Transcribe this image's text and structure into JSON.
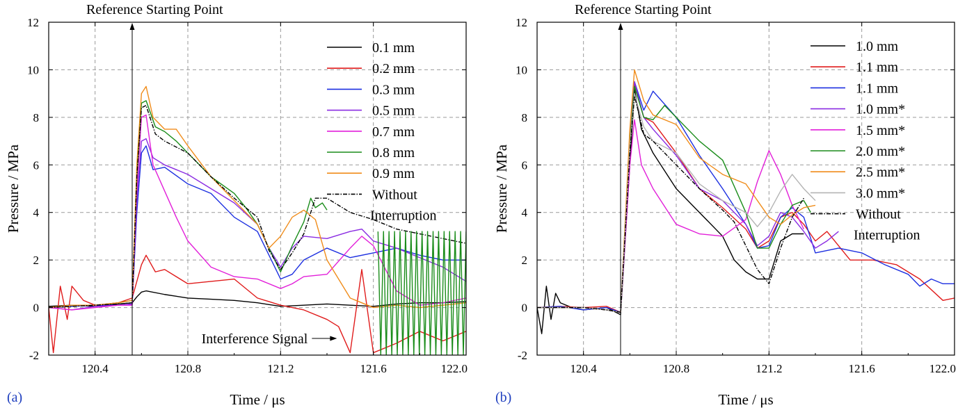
{
  "chart_data": [
    {
      "type": "line",
      "panel_label": "(a)",
      "xlabel": "Time  / μs",
      "ylabel": "Pressure / MPa",
      "xlim": [
        120.2,
        122.0
      ],
      "ylim": [
        -2,
        12
      ],
      "xticks": [
        "120.4",
        "120.8",
        "121.2",
        "121.6",
        "122.0"
      ],
      "xtick_values": [
        120.4,
        120.8,
        121.2,
        121.6,
        122.0
      ],
      "yticks": [
        "-2",
        "0",
        "2",
        "4",
        "6",
        "8",
        "10",
        "12"
      ],
      "ytick_values": [
        -2,
        0,
        2,
        4,
        6,
        8,
        10,
        12
      ],
      "grid": true,
      "legend_position": "top-right",
      "annotations": [
        {
          "text": "Reference Starting Point",
          "x": 120.56,
          "kind": "vertical-arrow"
        },
        {
          "text": "Interference Signal",
          "x": 121.44,
          "y": -1.3,
          "kind": "pointer-arrow"
        }
      ],
      "series": [
        {
          "name": "0.1 mm",
          "color": "#000000",
          "dash": "solid",
          "x": [
            120.2,
            120.3,
            120.4,
            120.5,
            120.56,
            120.58,
            120.6,
            120.62,
            120.7,
            120.8,
            120.9,
            121.0,
            121.1,
            121.2,
            121.3,
            121.4,
            121.5,
            121.6,
            121.7,
            121.8,
            121.9,
            122.0
          ],
          "y": [
            0.05,
            0.1,
            0.05,
            0.15,
            0.2,
            0.45,
            0.65,
            0.7,
            0.55,
            0.4,
            0.35,
            0.3,
            0.2,
            0.05,
            0.1,
            0.15,
            0.1,
            0.05,
            0.15,
            0.2,
            0.2,
            0.25
          ]
        },
        {
          "name": "0.2 mm",
          "color": "#e01b1b",
          "dash": "solid",
          "x": [
            120.2,
            120.22,
            120.25,
            120.28,
            120.3,
            120.35,
            120.4,
            120.5,
            120.56,
            120.6,
            120.62,
            120.66,
            120.7,
            120.8,
            120.9,
            121.0,
            121.1,
            121.2,
            121.3,
            121.4,
            121.45,
            121.5,
            121.55,
            121.6,
            121.7,
            121.8,
            121.9,
            122.0
          ],
          "y": [
            0.0,
            -1.9,
            0.9,
            -0.5,
            0.9,
            0.3,
            0.1,
            0.2,
            0.4,
            1.8,
            2.2,
            1.5,
            1.6,
            1.0,
            1.1,
            1.2,
            0.4,
            0.1,
            -0.1,
            -0.5,
            -0.8,
            -1.9,
            1.6,
            -1.9,
            -1.5,
            -1.0,
            -1.4,
            -1.0
          ]
        },
        {
          "name": "0.3 mm",
          "color": "#1c2fe0",
          "dash": "solid",
          "x": [
            120.2,
            120.3,
            120.4,
            120.5,
            120.56,
            120.58,
            120.6,
            120.62,
            120.65,
            120.7,
            120.8,
            120.9,
            121.0,
            121.1,
            121.15,
            121.2,
            121.25,
            121.3,
            121.4,
            121.5,
            121.6,
            121.7,
            121.8,
            121.9,
            122.0
          ],
          "y": [
            0.0,
            0.05,
            0.1,
            0.1,
            0.15,
            4.0,
            6.5,
            6.8,
            5.8,
            5.9,
            5.2,
            4.8,
            3.8,
            3.2,
            2.2,
            1.2,
            1.4,
            2.0,
            2.5,
            2.1,
            2.3,
            2.5,
            2.2,
            2.0,
            2.0
          ]
        },
        {
          "name": "0.5 mm",
          "color": "#8a2be2",
          "dash": "solid",
          "x": [
            120.2,
            120.3,
            120.4,
            120.5,
            120.56,
            120.58,
            120.6,
            120.62,
            120.65,
            120.7,
            120.8,
            120.9,
            121.0,
            121.1,
            121.15,
            121.2,
            121.25,
            121.3,
            121.4,
            121.5,
            121.55,
            121.6,
            121.7,
            121.8,
            121.9,
            122.0
          ],
          "y": [
            0.0,
            -0.1,
            0.05,
            0.1,
            0.15,
            4.5,
            7.0,
            7.1,
            6.3,
            6.0,
            5.6,
            5.0,
            4.4,
            3.5,
            2.5,
            1.7,
            2.5,
            3.0,
            2.9,
            3.2,
            3.3,
            2.8,
            2.5,
            2.1,
            1.7,
            1.1
          ]
        },
        {
          "name": "0.7 mm",
          "color": "#e21fd9",
          "dash": "solid",
          "x": [
            120.2,
            120.3,
            120.4,
            120.5,
            120.56,
            120.58,
            120.6,
            120.62,
            120.65,
            120.7,
            120.75,
            120.8,
            120.9,
            121.0,
            121.1,
            121.2,
            121.25,
            121.3,
            121.4,
            121.5,
            121.55,
            121.6,
            121.7,
            121.8,
            121.9,
            122.0
          ],
          "y": [
            0.0,
            -0.1,
            0.0,
            0.1,
            0.1,
            5.0,
            8.0,
            8.1,
            6.0,
            4.9,
            3.8,
            2.8,
            1.7,
            1.3,
            1.2,
            0.8,
            1.0,
            1.3,
            1.4,
            2.5,
            3.0,
            2.6,
            0.7,
            0.1,
            0.2,
            0.4
          ]
        },
        {
          "name": "0.8 mm",
          "color": "#1a8c1a",
          "dash": "solid",
          "x": [
            120.2,
            120.3,
            120.4,
            120.5,
            120.56,
            120.58,
            120.6,
            120.62,
            120.66,
            120.7,
            120.75,
            120.8,
            120.9,
            121.0,
            121.05,
            121.1,
            121.15,
            121.2,
            121.25,
            121.3,
            121.33,
            121.35,
            121.38,
            121.4
          ],
          "y": [
            0.0,
            0.1,
            0.1,
            0.2,
            0.3,
            5.5,
            8.6,
            8.7,
            7.6,
            7.4,
            7.0,
            6.5,
            5.5,
            4.8,
            4.2,
            3.5,
            2.5,
            1.5,
            2.6,
            3.6,
            4.6,
            4.2,
            4.4,
            4.1
          ]
        },
        {
          "name": "0.9 mm",
          "color": "#f08c1a",
          "dash": "solid",
          "x": [
            120.2,
            120.3,
            120.4,
            120.5,
            120.56,
            120.58,
            120.6,
            120.62,
            120.65,
            120.7,
            120.75,
            120.8,
            120.9,
            121.0,
            121.1,
            121.15,
            121.2,
            121.25,
            121.3,
            121.35,
            121.4,
            121.5,
            121.6,
            121.7,
            121.8,
            121.9,
            122.0
          ],
          "y": [
            0.0,
            0.1,
            0.1,
            0.2,
            0.3,
            6.0,
            9.0,
            9.3,
            8.0,
            7.5,
            7.5,
            6.8,
            5.5,
            4.5,
            3.5,
            2.5,
            3.0,
            3.8,
            4.1,
            3.7,
            2.0,
            0.4,
            0.0,
            0.1,
            0.0,
            0.1,
            0.2
          ]
        },
        {
          "name": "Without Interruption",
          "color": "#000000",
          "dash": "dashdot",
          "x": [
            120.2,
            120.3,
            120.4,
            120.5,
            120.56,
            120.58,
            120.6,
            120.62,
            120.66,
            120.7,
            120.8,
            120.9,
            121.0,
            121.1,
            121.15,
            121.2,
            121.25,
            121.3,
            121.35,
            121.4,
            121.5,
            121.6,
            121.7,
            121.8,
            121.9,
            122.0
          ],
          "y": [
            0.0,
            0.05,
            0.1,
            0.15,
            0.2,
            5.5,
            8.4,
            8.5,
            7.3,
            7.0,
            6.5,
            5.5,
            4.6,
            3.8,
            2.4,
            1.6,
            2.3,
            3.1,
            4.6,
            4.6,
            4.0,
            3.7,
            3.3,
            3.1,
            2.9,
            2.7
          ]
        },
        {
          "name": "",
          "color": "#1a8c1a",
          "dash": "solid",
          "kind": "oscillation",
          "x_start": 121.62,
          "x_end": 122.0,
          "y_low": -2.0,
          "y_high": 3.2,
          "cycles": 16
        }
      ]
    },
    {
      "type": "line",
      "panel_label": "(b)",
      "xlabel": "Time  / μs",
      "ylabel": "Pressure / MPa",
      "xlim": [
        120.2,
        122.0
      ],
      "ylim": [
        -2,
        12
      ],
      "xticks": [
        "120.4",
        "120.8",
        "121.2",
        "121.6",
        "122.0"
      ],
      "xtick_values": [
        120.4,
        120.8,
        121.2,
        121.6,
        122.0
      ],
      "yticks": [
        "-2",
        "0",
        "2",
        "4",
        "6",
        "8",
        "10",
        "12"
      ],
      "ytick_values": [
        -2,
        0,
        2,
        4,
        6,
        8,
        10,
        12
      ],
      "grid": true,
      "legend_position": "top-right",
      "annotations": [
        {
          "text": "Reference Starting Point",
          "x": 120.56,
          "kind": "vertical-arrow"
        }
      ],
      "series": [
        {
          "name": "1.0 mm",
          "color": "#000000",
          "dash": "solid",
          "x": [
            120.2,
            120.22,
            120.24,
            120.26,
            120.28,
            120.3,
            120.35,
            120.4,
            120.5,
            120.56,
            120.6,
            120.62,
            120.65,
            120.7,
            120.8,
            120.9,
            121.0,
            121.05,
            121.1,
            121.15,
            121.2,
            121.25,
            121.3,
            121.35
          ],
          "y": [
            0.0,
            -1.1,
            0.9,
            -0.5,
            0.6,
            0.2,
            0.0,
            -0.1,
            0.0,
            -0.3,
            6.0,
            9.2,
            7.5,
            6.5,
            5.0,
            4.0,
            3.0,
            2.0,
            1.5,
            1.2,
            1.2,
            2.8,
            3.1,
            3.1
          ]
        },
        {
          "name": "1.1 mm",
          "color": "#e01b1b",
          "dash": "solid",
          "x": [
            120.2,
            120.3,
            120.4,
            120.5,
            120.56,
            120.6,
            120.62,
            120.66,
            120.7,
            120.8,
            120.9,
            121.0,
            121.1,
            121.15,
            121.2,
            121.25,
            121.3,
            121.35,
            121.4,
            121.45,
            121.55,
            121.65,
            121.75,
            121.85,
            121.95,
            122.0
          ],
          "y": [
            0.0,
            0.05,
            0.0,
            0.05,
            -0.2,
            7.0,
            9.4,
            8.0,
            7.8,
            6.5,
            5.0,
            4.2,
            3.3,
            2.5,
            2.8,
            3.8,
            4.0,
            3.5,
            2.8,
            3.2,
            2.0,
            2.0,
            1.8,
            1.2,
            0.3,
            0.4
          ]
        },
        {
          "name": "1.1 mm",
          "color": "#1c2fe0",
          "dash": "solid",
          "x": [
            120.2,
            120.3,
            120.4,
            120.5,
            120.56,
            120.6,
            120.62,
            120.66,
            120.7,
            120.8,
            120.9,
            121.0,
            121.1,
            121.15,
            121.2,
            121.25,
            121.3,
            121.35,
            121.4,
            121.5,
            121.6,
            121.7,
            121.8,
            121.85,
            121.9,
            121.95,
            122.0
          ],
          "y": [
            0.0,
            0.05,
            -0.1,
            0.0,
            -0.2,
            7.2,
            9.5,
            8.3,
            9.1,
            8.0,
            6.4,
            5.0,
            3.5,
            2.5,
            2.6,
            3.8,
            4.2,
            3.8,
            2.3,
            2.5,
            2.3,
            1.8,
            1.4,
            0.9,
            1.2,
            1.0,
            1.0
          ]
        },
        {
          "name": "1.0 mm*",
          "color": "#8a2be2",
          "dash": "solid",
          "x": [
            120.2,
            120.3,
            120.4,
            120.5,
            120.56,
            120.6,
            120.62,
            120.66,
            120.7,
            120.8,
            120.9,
            121.0,
            121.1,
            121.15,
            121.2,
            121.25,
            121.3,
            121.35,
            121.4,
            121.45,
            121.5
          ],
          "y": [
            0.0,
            0.0,
            0.0,
            -0.1,
            -0.2,
            7.0,
            9.5,
            8.0,
            7.5,
            6.4,
            5.0,
            4.5,
            3.5,
            2.6,
            3.0,
            4.0,
            3.8,
            3.2,
            2.5,
            2.8,
            3.2
          ]
        },
        {
          "name": "1.5 mm*",
          "color": "#e21fd9",
          "dash": "solid",
          "x": [
            120.2,
            120.3,
            120.4,
            120.5,
            120.56,
            120.6,
            120.62,
            120.65,
            120.7,
            120.8,
            120.9,
            121.0,
            121.1,
            121.15,
            121.2,
            121.25,
            121.3,
            121.35
          ],
          "y": [
            0.0,
            0.0,
            0.0,
            -0.1,
            -0.2,
            6.0,
            7.9,
            6.0,
            5.0,
            3.5,
            3.1,
            3.0,
            3.7,
            5.3,
            6.6,
            5.6,
            4.3,
            3.3
          ]
        },
        {
          "name": "2.0 mm*",
          "color": "#1a8c1a",
          "dash": "solid",
          "x": [
            120.2,
            120.3,
            120.4,
            120.5,
            120.56,
            120.6,
            120.62,
            120.66,
            120.7,
            120.75,
            120.8,
            120.9,
            121.0,
            121.1,
            121.15,
            121.2,
            121.25,
            121.3,
            121.35,
            121.38
          ],
          "y": [
            0.0,
            0.0,
            0.0,
            -0.1,
            -0.2,
            7.0,
            9.3,
            8.0,
            7.9,
            8.5,
            8.0,
            7.0,
            6.2,
            4.0,
            2.5,
            2.5,
            3.5,
            4.3,
            4.5,
            4.0
          ]
        },
        {
          "name": "2.5 mm*",
          "color": "#f08c1a",
          "dash": "solid",
          "x": [
            120.2,
            120.3,
            120.4,
            120.5,
            120.56,
            120.6,
            120.62,
            120.66,
            120.7,
            120.8,
            120.9,
            121.0,
            121.1,
            121.2,
            121.25,
            121.3,
            121.35,
            121.4
          ],
          "y": [
            0.0,
            0.0,
            0.0,
            -0.1,
            -0.2,
            7.5,
            10.0,
            8.7,
            8.1,
            7.7,
            6.3,
            5.6,
            5.2,
            3.8,
            3.5,
            3.9,
            4.2,
            4.3
          ]
        },
        {
          "name": "3.0 mm*",
          "color": "#b4b4b4",
          "dash": "solid",
          "x": [
            120.2,
            120.3,
            120.4,
            120.5,
            120.56,
            120.6,
            120.62,
            120.66,
            120.7,
            120.8,
            120.9,
            121.0,
            121.1,
            121.15,
            121.2,
            121.25,
            121.3,
            121.35,
            121.4
          ],
          "y": [
            0.0,
            0.0,
            0.0,
            -0.1,
            -0.2,
            6.8,
            9.0,
            7.6,
            7.0,
            6.5,
            5.2,
            4.5,
            4.0,
            3.4,
            4.0,
            4.9,
            5.6,
            5.0,
            4.5
          ]
        },
        {
          "name": "Without Interruption",
          "color": "#000000",
          "dash": "dashdot",
          "x": [
            120.2,
            120.3,
            120.4,
            120.5,
            120.56,
            120.6,
            120.62,
            120.66,
            120.7,
            120.8,
            120.9,
            121.0,
            121.05,
            121.1,
            121.15,
            121.2,
            121.25,
            121.3,
            121.35
          ],
          "y": [
            0.0,
            0.0,
            0.0,
            -0.1,
            -0.2,
            6.5,
            8.9,
            7.3,
            7.0,
            6.0,
            5.0,
            4.1,
            3.6,
            2.6,
            1.6,
            1.0,
            2.5,
            3.8,
            4.6
          ]
        }
      ]
    }
  ]
}
